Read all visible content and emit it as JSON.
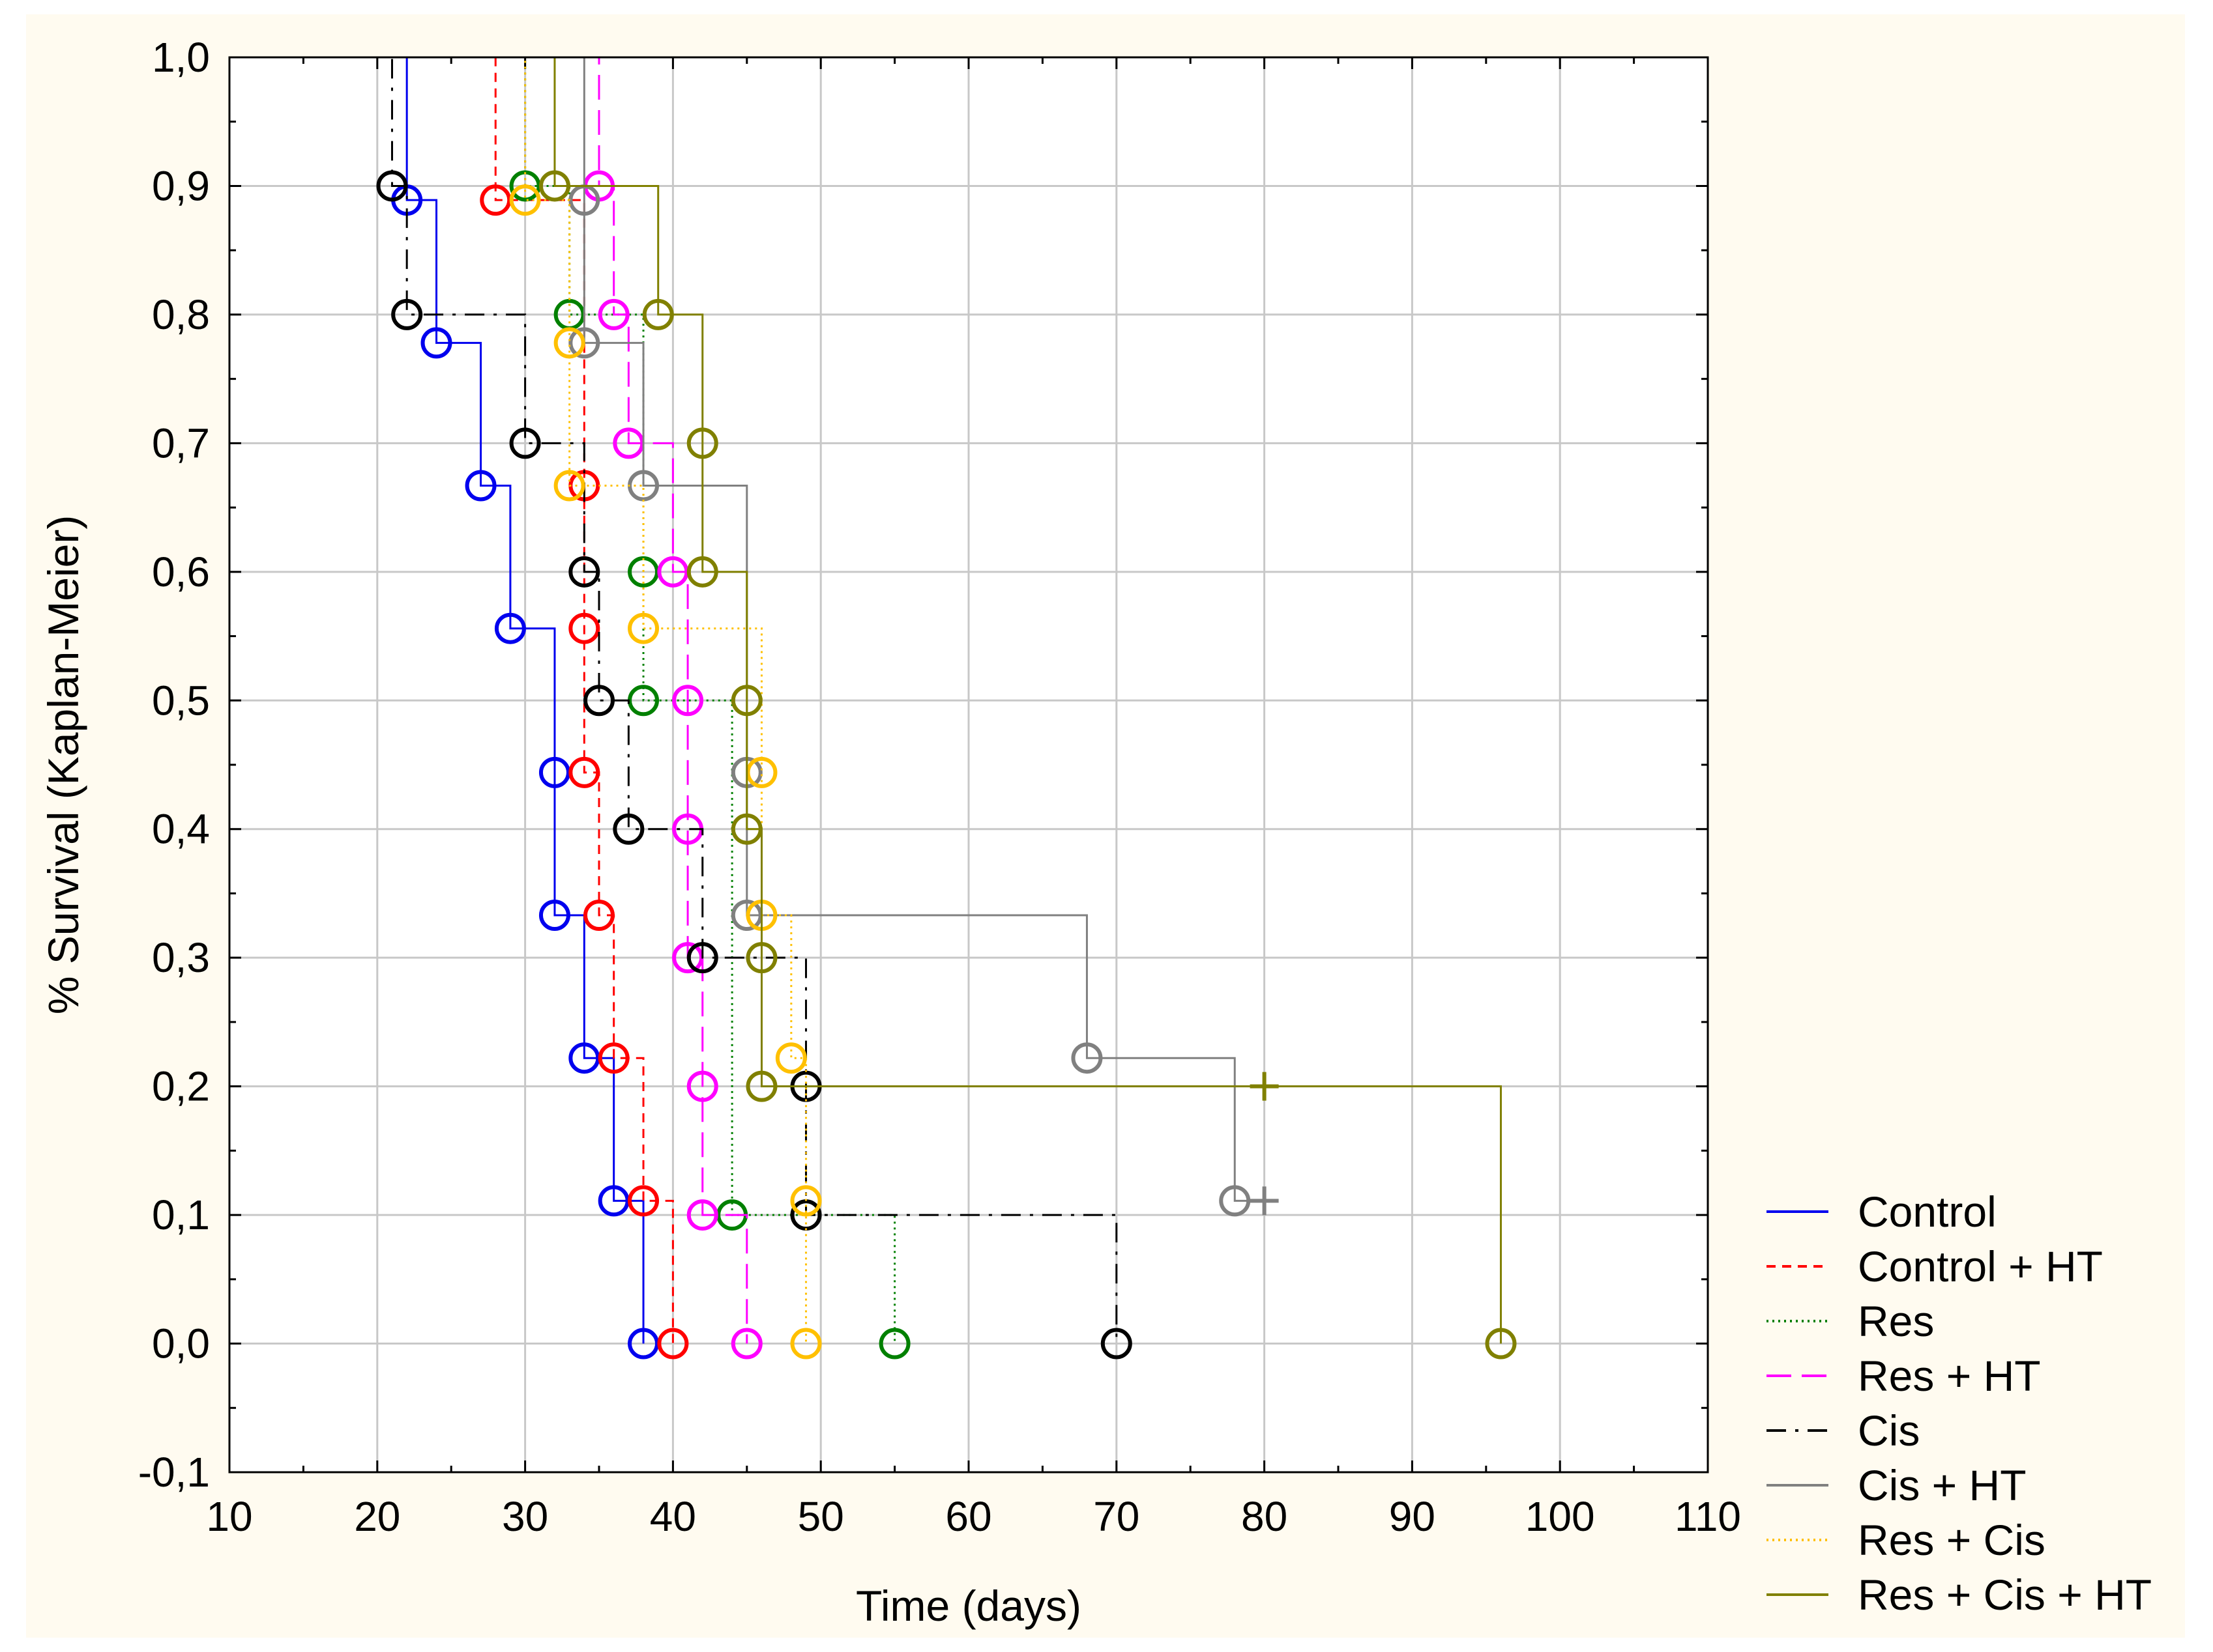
{
  "chart_data": {
    "type": "line",
    "subtype": "kaplan-meier-survival",
    "title": "",
    "xlabel": "Time (days)",
    "ylabel": "% Survival (Kaplan-Meier)",
    "xlim": [
      10,
      110
    ],
    "ylim": [
      -0.1,
      1.0
    ],
    "grid": true,
    "legend_position": "bottom-right, outside plot",
    "x_ticks": [
      10,
      20,
      30,
      40,
      50,
      60,
      70,
      80,
      90,
      100,
      110
    ],
    "x_tick_labels": [
      "10",
      "20",
      "30",
      "40",
      "50",
      "60",
      "70",
      "80",
      "90",
      "100",
      "110"
    ],
    "y_ticks": [
      -0.1,
      0.0,
      0.1,
      0.2,
      0.3,
      0.4,
      0.5,
      0.6,
      0.7,
      0.8,
      0.9,
      1.0
    ],
    "y_tick_labels": [
      "-0,1",
      "0,0",
      "0,1",
      "0,2",
      "0,3",
      "0,4",
      "0,5",
      "0,6",
      "0,7",
      "0,8",
      "0,9",
      "1,0"
    ],
    "series": [
      {
        "name": "Control",
        "color": "#0000ee",
        "dash": "solid",
        "steps": [
          [
            10,
            1.0
          ],
          [
            22,
            0.889
          ],
          [
            24,
            0.778
          ],
          [
            27,
            0.667
          ],
          [
            29,
            0.556
          ],
          [
            32,
            0.444
          ],
          [
            32,
            0.333
          ],
          [
            34,
            0.222
          ],
          [
            36,
            0.111
          ],
          [
            38,
            0.0
          ]
        ],
        "events": [
          [
            22,
            0.889
          ],
          [
            24,
            0.778
          ],
          [
            27,
            0.667
          ],
          [
            29,
            0.556
          ],
          [
            32,
            0.444
          ],
          [
            32,
            0.333
          ],
          [
            34,
            0.222
          ],
          [
            36,
            0.111
          ],
          [
            38,
            0.0
          ]
        ],
        "censored": []
      },
      {
        "name": "Control + HT",
        "color": "#ff0000",
        "dash": "short-dash",
        "steps": [
          [
            10,
            1.0
          ],
          [
            28,
            0.889
          ],
          [
            34,
            0.667
          ],
          [
            34,
            0.556
          ],
          [
            34,
            0.444
          ],
          [
            35,
            0.333
          ],
          [
            36,
            0.222
          ],
          [
            38,
            0.111
          ],
          [
            40,
            0.0
          ]
        ],
        "events": [
          [
            28,
            0.889
          ],
          [
            34,
            0.667
          ],
          [
            34,
            0.556
          ],
          [
            34,
            0.444
          ],
          [
            35,
            0.333
          ],
          [
            36,
            0.222
          ],
          [
            38,
            0.111
          ],
          [
            40,
            0.0
          ]
        ],
        "censored": []
      },
      {
        "name": "Res",
        "color": "#008000",
        "dash": "dotted",
        "steps": [
          [
            10,
            1.0
          ],
          [
            30,
            0.9
          ],
          [
            33,
            0.8
          ],
          [
            38,
            0.6
          ],
          [
            38,
            0.5
          ],
          [
            44,
            0.1
          ],
          [
            55,
            0.0
          ]
        ],
        "events": [
          [
            30,
            0.9
          ],
          [
            33,
            0.8
          ],
          [
            38,
            0.6
          ],
          [
            38,
            0.5
          ],
          [
            44,
            0.1
          ],
          [
            55,
            0.0
          ]
        ],
        "censored": []
      },
      {
        "name": "Res + HT",
        "color": "#ff00ff",
        "dash": "long-dash",
        "steps": [
          [
            10,
            1.0
          ],
          [
            35,
            0.9
          ],
          [
            36,
            0.8
          ],
          [
            37,
            0.7
          ],
          [
            40,
            0.6
          ],
          [
            41,
            0.5
          ],
          [
            41,
            0.4
          ],
          [
            41,
            0.3
          ],
          [
            42,
            0.2
          ],
          [
            42,
            0.1
          ],
          [
            45,
            0.0
          ]
        ],
        "events": [
          [
            35,
            0.9
          ],
          [
            36,
            0.8
          ],
          [
            37,
            0.7
          ],
          [
            40,
            0.6
          ],
          [
            41,
            0.5
          ],
          [
            41,
            0.4
          ],
          [
            41,
            0.3
          ],
          [
            42,
            0.2
          ],
          [
            42,
            0.1
          ],
          [
            45,
            0.0
          ]
        ],
        "censored": []
      },
      {
        "name": "Cis",
        "color": "#000000",
        "dash": "dash-dot",
        "steps": [
          [
            10,
            1.0
          ],
          [
            21,
            0.9
          ],
          [
            22,
            0.8
          ],
          [
            30,
            0.7
          ],
          [
            34,
            0.6
          ],
          [
            35,
            0.5
          ],
          [
            37,
            0.4
          ],
          [
            42,
            0.3
          ],
          [
            49,
            0.2
          ],
          [
            49,
            0.1
          ],
          [
            70,
            0.0
          ]
        ],
        "events": [
          [
            21,
            0.9
          ],
          [
            22,
            0.8
          ],
          [
            30,
            0.7
          ],
          [
            34,
            0.6
          ],
          [
            35,
            0.5
          ],
          [
            37,
            0.4
          ],
          [
            42,
            0.3
          ],
          [
            49,
            0.2
          ],
          [
            49,
            0.1
          ],
          [
            70,
            0.0
          ]
        ],
        "censored": []
      },
      {
        "name": "Cis + HT",
        "color": "#808080",
        "dash": "solid",
        "steps": [
          [
            10,
            1.0
          ],
          [
            34,
            0.889
          ],
          [
            34,
            0.778
          ],
          [
            38,
            0.667
          ],
          [
            45,
            0.444
          ],
          [
            45,
            0.333
          ],
          [
            68,
            0.222
          ],
          [
            78,
            0.111
          ],
          [
            80,
            0.111
          ]
        ],
        "events": [
          [
            34,
            0.889
          ],
          [
            34,
            0.778
          ],
          [
            38,
            0.667
          ],
          [
            45,
            0.444
          ],
          [
            45,
            0.333
          ],
          [
            68,
            0.222
          ],
          [
            78,
            0.111
          ]
        ],
        "censored": [
          [
            80,
            0.111
          ]
        ]
      },
      {
        "name": "Res + Cis",
        "color": "#ffc000",
        "dash": "dotted",
        "steps": [
          [
            10,
            1.0
          ],
          [
            30,
            0.889
          ],
          [
            33,
            0.778
          ],
          [
            33,
            0.667
          ],
          [
            38,
            0.556
          ],
          [
            46,
            0.444
          ],
          [
            46,
            0.333
          ],
          [
            48,
            0.222
          ],
          [
            49,
            0.111
          ],
          [
            49,
            0.0
          ]
        ],
        "events": [
          [
            30,
            0.889
          ],
          [
            33,
            0.778
          ],
          [
            33,
            0.667
          ],
          [
            38,
            0.556
          ],
          [
            46,
            0.444
          ],
          [
            46,
            0.333
          ],
          [
            48,
            0.222
          ],
          [
            49,
            0.111
          ],
          [
            49,
            0.0
          ]
        ],
        "censored": []
      },
      {
        "name": "Res + Cis + HT",
        "color": "#808000",
        "dash": "solid",
        "steps": [
          [
            10,
            1.0
          ],
          [
            32,
            0.9
          ],
          [
            39,
            0.8
          ],
          [
            42,
            0.7
          ],
          [
            42,
            0.6
          ],
          [
            45,
            0.5
          ],
          [
            45,
            0.4
          ],
          [
            46,
            0.3
          ],
          [
            46,
            0.2
          ],
          [
            96,
            0.0
          ]
        ],
        "events": [
          [
            32,
            0.9
          ],
          [
            39,
            0.8
          ],
          [
            42,
            0.7
          ],
          [
            42,
            0.6
          ],
          [
            45,
            0.5
          ],
          [
            45,
            0.4
          ],
          [
            46,
            0.3
          ],
          [
            46,
            0.2
          ],
          [
            96,
            0.0
          ]
        ],
        "censored": [
          [
            80,
            0.2
          ]
        ]
      }
    ]
  }
}
